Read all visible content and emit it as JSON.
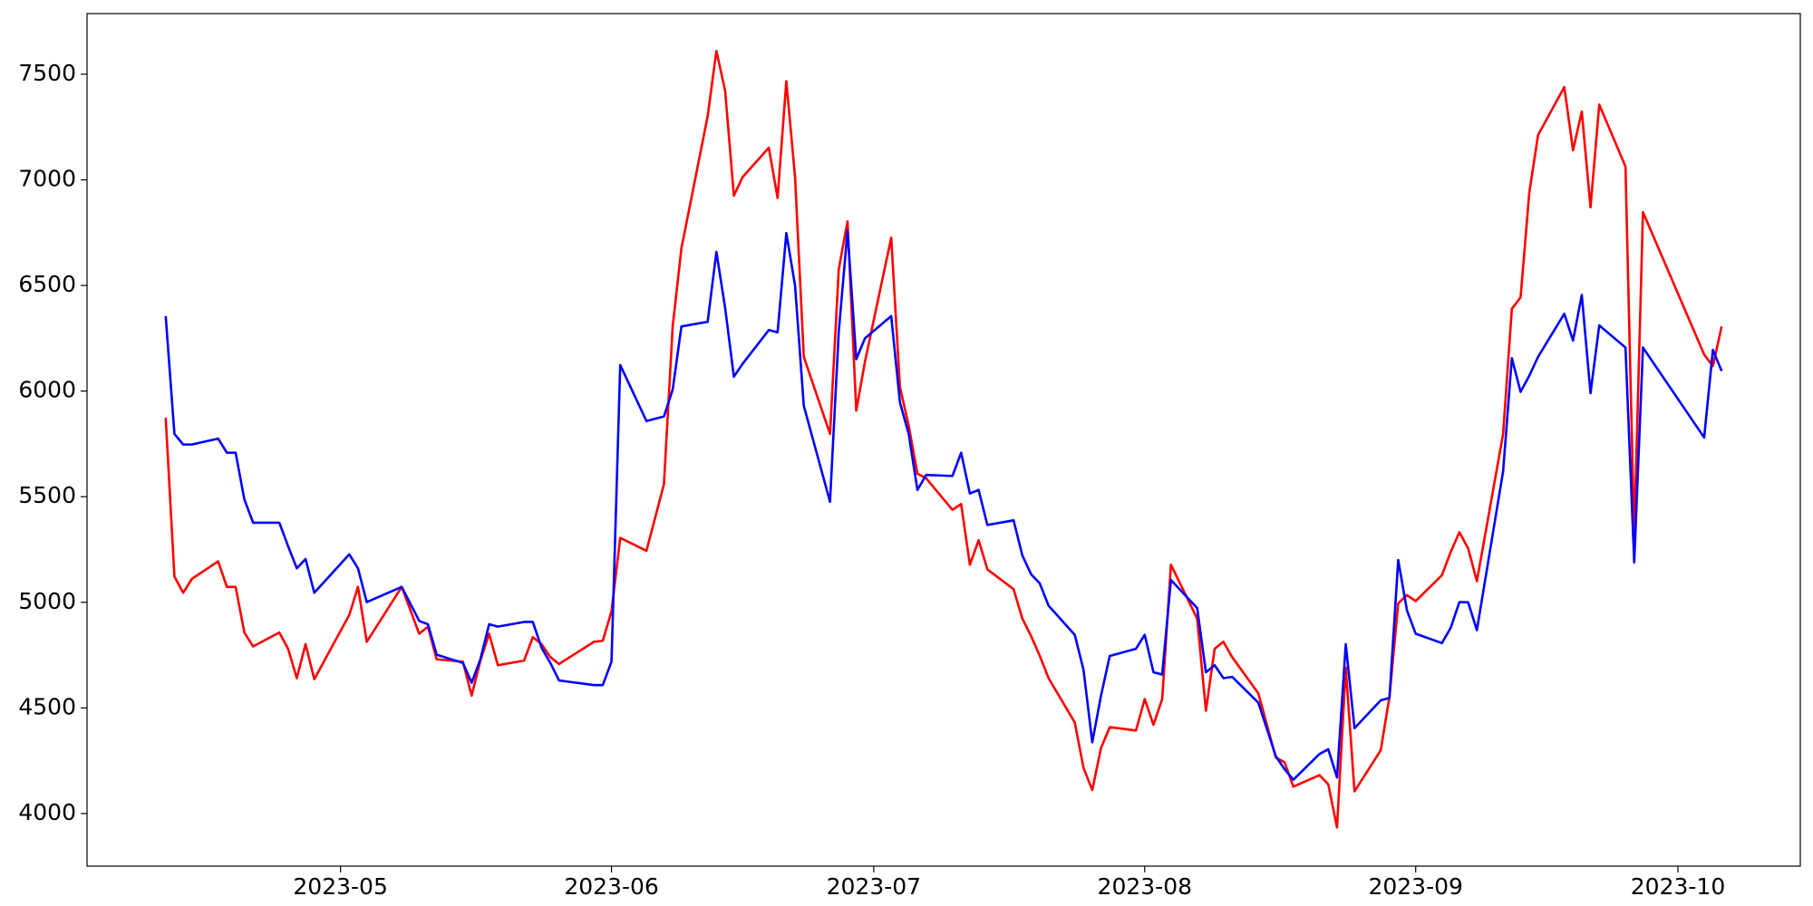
{
  "chart_data": {
    "type": "line",
    "x": [
      19458,
      19459,
      19460,
      19461,
      19464,
      19465,
      19466,
      19467,
      19468,
      19471,
      19472,
      19473,
      19474,
      19475,
      19479,
      19480,
      19481,
      19485,
      19487,
      19488,
      19489,
      19492,
      19493,
      19494,
      19495,
      19496,
      19499,
      19500,
      19501,
      19502,
      19503,
      19507,
      19508,
      19509,
      19510,
      19513,
      19515,
      19516,
      19517,
      19520,
      19521,
      19522,
      19523,
      19524,
      19527,
      19528,
      19529,
      19530,
      19531,
      19534,
      19535,
      19536,
      19537,
      19538,
      19541,
      19542,
      19543,
      19544,
      19545,
      19548,
      19549,
      19550,
      19551,
      19552,
      19555,
      19556,
      19557,
      19558,
      19559,
      19562,
      19563,
      19564,
      19565,
      19566,
      19569,
      19570,
      19571,
      19572,
      19573,
      19576,
      19577,
      19578,
      19579,
      19580,
      19583,
      19585,
      19586,
      19587,
      19590,
      19591,
      19592,
      19593,
      19594,
      19597,
      19598,
      19599,
      19600,
      19601,
      19604,
      19605,
      19606,
      19607,
      19608,
      19611,
      19612,
      19613,
      19614,
      19615,
      19618,
      19619,
      19620,
      19621,
      19622,
      19625,
      19626,
      19627,
      19634,
      19635,
      19636
    ],
    "series": [
      {
        "color": "red",
        "values": [
          5874,
          5122,
          5045,
          5111,
          5194,
          5073,
          5073,
          4857,
          4791,
          4857,
          4780,
          4641,
          4802,
          4636,
          4940,
          5073,
          4813,
          5073,
          4851,
          4885,
          4730,
          4719,
          4558,
          4724,
          4851,
          4702,
          4724,
          4835,
          4802,
          4741,
          4708,
          4813,
          4818,
          4957,
          5305,
          5244,
          5559,
          6306,
          6676,
          7301,
          7610,
          7422,
          6925,
          7013,
          7152,
          6914,
          7467,
          7013,
          6162,
          5797,
          6577,
          6803,
          5907,
          6140,
          6726,
          6018,
          5836,
          5609,
          5587,
          5438,
          5465,
          5178,
          5294,
          5156,
          5062,
          4923,
          4840,
          4746,
          4641,
          4431,
          4216,
          4111,
          4310,
          4409,
          4393,
          4542,
          4420,
          4542,
          5178,
          4923,
          4487,
          4780,
          4813,
          4741,
          4569,
          4265,
          4243,
          4127,
          4182,
          4138,
          3934,
          4691,
          4105,
          4299,
          4553,
          4995,
          5034,
          5006,
          5128,
          5238,
          5332,
          5255,
          5100,
          5797,
          6389,
          6444,
          6941,
          7212,
          7439,
          7140,
          7323,
          6870,
          7356,
          7063,
          5310,
          6847,
          6173,
          6118,
          6306
        ]
      },
      {
        "color": "blue",
        "values": [
          6355,
          5797,
          5747,
          5747,
          5775,
          5708,
          5708,
          5487,
          5377,
          5377,
          5266,
          5161,
          5205,
          5045,
          5227,
          5161,
          5001,
          5073,
          4912,
          4896,
          4752,
          4713,
          4619,
          4730,
          4896,
          4885,
          4907,
          4907,
          4785,
          4713,
          4630,
          4608,
          4608,
          4719,
          6123,
          5858,
          5880,
          6007,
          6306,
          6328,
          6659,
          6394,
          6068,
          6129,
          6289,
          6278,
          6748,
          6499,
          5930,
          5476,
          6283,
          6759,
          6151,
          6250,
          6355,
          5946,
          5797,
          5532,
          5603,
          5598,
          5708,
          5515,
          5532,
          5366,
          5388,
          5222,
          5133,
          5089,
          4984,
          4846,
          4680,
          4337,
          4558,
          4746,
          4780,
          4846,
          4669,
          4658,
          5106,
          4973,
          4669,
          4702,
          4641,
          4647,
          4525,
          4271,
          4210,
          4160,
          4282,
          4304,
          4171,
          4802,
          4404,
          4536,
          4547,
          5200,
          4962,
          4851,
          4807,
          4879,
          5001,
          5000,
          4868,
          5620,
          6156,
          5996,
          6073,
          6162,
          6366,
          6239,
          6455,
          5990,
          6311,
          6206,
          5189,
          6206,
          5780,
          6195,
          6095
        ]
      }
    ],
    "xlim": [
      19449,
      19645
    ],
    "xticks": [
      {
        "value": 19478,
        "label": "2023-05"
      },
      {
        "value": 19509,
        "label": "2023-06"
      },
      {
        "value": 19539,
        "label": "2023-07"
      },
      {
        "value": 19570,
        "label": "2023-08"
      },
      {
        "value": 19601,
        "label": "2023-09"
      },
      {
        "value": 19631,
        "label": "2023-10"
      }
    ],
    "ylim": [
      3751,
      7787
    ],
    "yticks": [
      4000,
      4500,
      5000,
      5500,
      6000,
      6500,
      7000,
      7500
    ],
    "grid": false
  }
}
